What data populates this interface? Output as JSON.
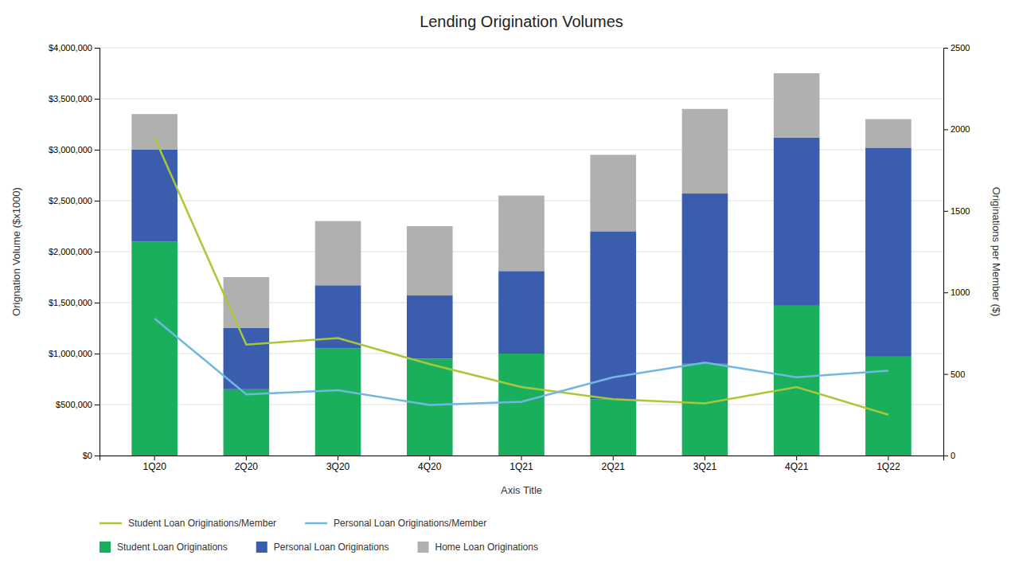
{
  "chart_data": {
    "type": "bar",
    "stacked": true,
    "title": "Lending Origination Volumes",
    "x_label": "Axis Title",
    "y_label": "Orignation Volume ($x1000)",
    "y2_label": "Originations per Member ($)",
    "categories": [
      "1Q20",
      "2Q20",
      "3Q20",
      "4Q20",
      "1Q21",
      "2Q21",
      "3Q21",
      "4Q21",
      "1Q22"
    ],
    "series": [
      {
        "name": "Student Loan Originations",
        "type": "bar",
        "color": "#1aaf5d",
        "values": [
          2100000,
          650000,
          1050000,
          950000,
          1000000,
          550000,
          900000,
          1470000,
          970000
        ]
      },
      {
        "name": "Personal Loan Originations",
        "type": "bar",
        "color": "#3a5dae",
        "values": [
          900000,
          600000,
          620000,
          620000,
          810000,
          1650000,
          1670000,
          1650000,
          2050000
        ]
      },
      {
        "name": "Home Loan Originations",
        "type": "bar",
        "color": "#b0b0b0",
        "values": [
          350000,
          500000,
          630000,
          680000,
          740000,
          750000,
          830000,
          630000,
          280000
        ]
      },
      {
        "name": "Student Loan Originations/Member",
        "type": "line",
        "axis": "y2",
        "color": "#a8c838",
        "values": [
          1950,
          680,
          720,
          560,
          420,
          345,
          320,
          420,
          250
        ]
      },
      {
        "name": "Personal Loan Originations/Member",
        "type": "line",
        "axis": "y2",
        "color": "#70b8e0",
        "values": [
          840,
          375,
          400,
          310,
          330,
          480,
          570,
          480,
          520
        ]
      }
    ],
    "ylim": [
      0,
      4000000
    ],
    "yticks": [
      {
        "value": 0,
        "label": "$0"
      },
      {
        "value": 500000,
        "label": "$500,000"
      },
      {
        "value": 1000000,
        "label": "$1,000,000"
      },
      {
        "value": 1500000,
        "label": "$1,500,000"
      },
      {
        "value": 2000000,
        "label": "$2,000,000"
      },
      {
        "value": 2500000,
        "label": "$2,500,000"
      },
      {
        "value": 3000000,
        "label": "$3,000,000"
      },
      {
        "value": 3500000,
        "label": "$3,500,000"
      },
      {
        "value": 4000000,
        "label": "$4,000,000"
      }
    ],
    "y2lim": [
      0,
      2500
    ],
    "y2ticks": [
      0,
      500,
      1000,
      1500,
      2000,
      2500
    ],
    "grid": true,
    "legend": "bottom"
  }
}
